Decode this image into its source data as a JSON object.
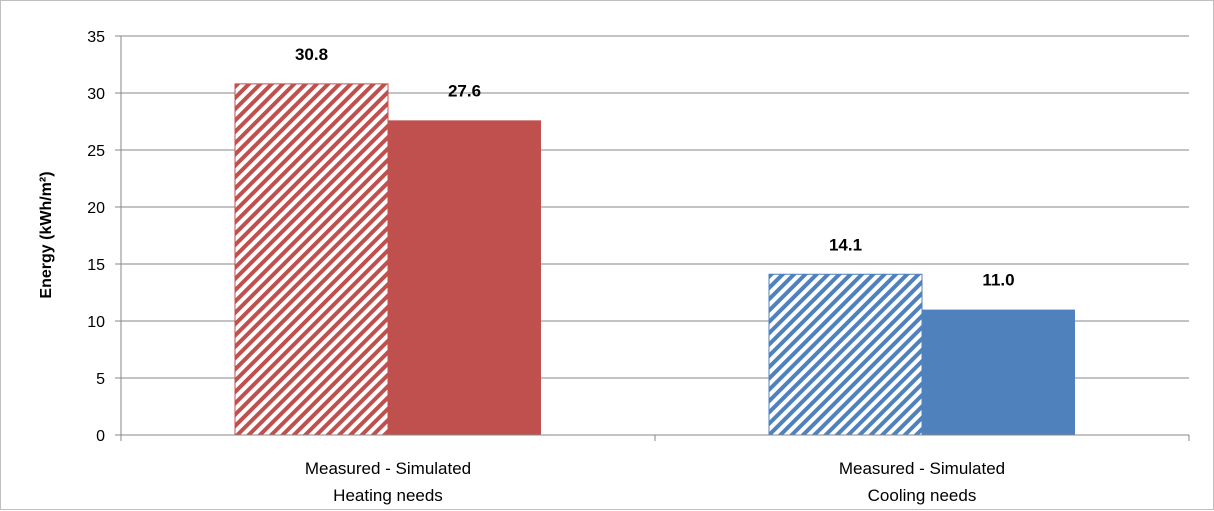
{
  "chart_data": {
    "type": "bar",
    "ylabel": "Energy (kWh/m²)",
    "ylim": [
      0,
      35
    ],
    "ytick_step": 5,
    "grid": true,
    "categories": [
      {
        "line1": "Measured - Simulated",
        "line2": "Heating needs"
      },
      {
        "line1": "Measured - Simulated",
        "line2": "Cooling needs"
      }
    ],
    "groups": [
      {
        "bars": [
          {
            "value": 30.8,
            "label": "30.8",
            "pattern": "hatched",
            "color": "#c0504d"
          },
          {
            "value": 27.6,
            "label": "27.6",
            "pattern": "solid",
            "color": "#c0504d"
          }
        ]
      },
      {
        "bars": [
          {
            "value": 14.1,
            "label": "14.1",
            "pattern": "hatched",
            "color": "#4f81bd"
          },
          {
            "value": 11.0,
            "label": "11.0",
            "pattern": "solid",
            "color": "#4f81bd"
          }
        ]
      }
    ]
  }
}
